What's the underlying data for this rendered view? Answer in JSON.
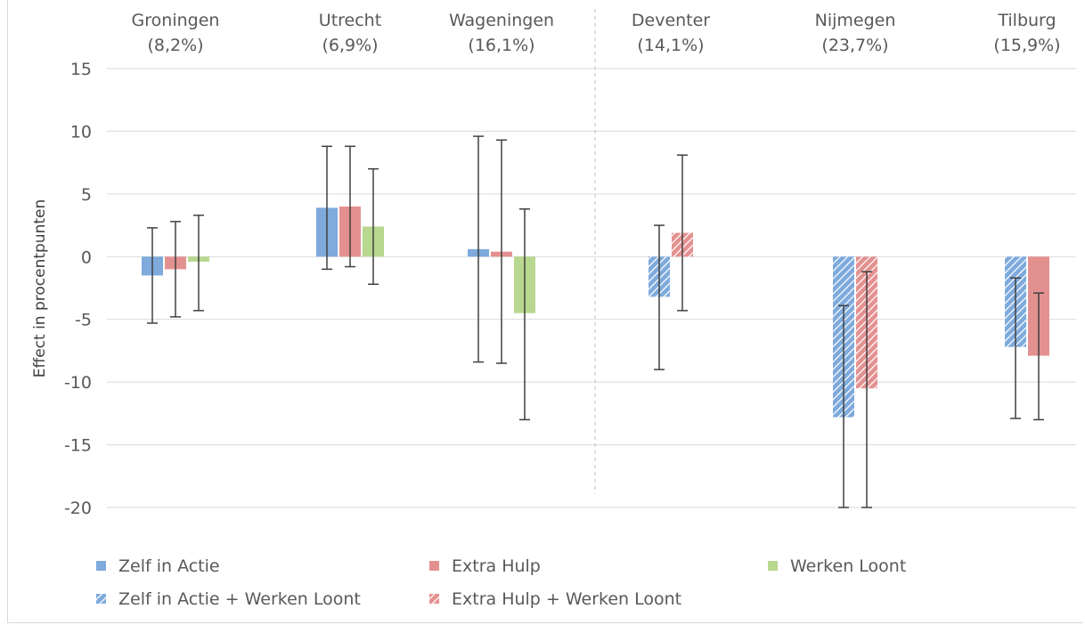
{
  "colors": {
    "blue": "#7eaadc",
    "red": "#e39190",
    "green": "#b8d78f",
    "grid": "#d9d9d9",
    "error": "#404040",
    "divider": "#bfbfbf"
  },
  "chart_data": {
    "type": "bar",
    "ylabel": "Effect in procentpunten",
    "ylim": [
      -20,
      15
    ],
    "yticks": [
      15,
      10,
      5,
      0,
      -5,
      -10,
      -15,
      -20
    ],
    "grid": true,
    "legend_position": "bottom",
    "groups": [
      {
        "name": "Groningen",
        "sub": "(8,2%)",
        "bars": [
          {
            "series": "Zelf in Actie",
            "value": -1.5,
            "err_low": -5.3,
            "err_high": 2.3
          },
          {
            "series": "Extra Hulp",
            "value": -1.0,
            "err_low": -4.8,
            "err_high": 2.8
          },
          {
            "series": "Werken Loont",
            "value": -0.4,
            "err_low": -4.3,
            "err_high": 3.3
          }
        ]
      },
      {
        "name": "Utrecht",
        "sub": "(6,9%)",
        "bars": [
          {
            "series": "Zelf in Actie",
            "value": 3.9,
            "err_low": -1.0,
            "err_high": 8.8
          },
          {
            "series": "Extra Hulp",
            "value": 4.0,
            "err_low": -0.8,
            "err_high": 8.8
          },
          {
            "series": "Werken Loont",
            "value": 2.4,
            "err_low": -2.2,
            "err_high": 7.0
          }
        ]
      },
      {
        "name": "Wageningen",
        "sub": "(16,1%)",
        "bars": [
          {
            "series": "Zelf in Actie",
            "value": 0.6,
            "err_low": -8.4,
            "err_high": 9.6
          },
          {
            "series": "Extra Hulp",
            "value": 0.4,
            "err_low": -8.5,
            "err_high": 9.3
          },
          {
            "series": "Werken Loont",
            "value": -4.5,
            "err_low": -13.0,
            "err_high": 3.8
          }
        ]
      },
      {
        "name": "Deventer",
        "sub": "(14,1%)",
        "bars": [
          {
            "series": "Zelf in Actie + Werken Loont",
            "value": -3.2,
            "err_low": -9.0,
            "err_high": 2.5
          },
          {
            "series": "Extra Hulp + Werken Loont",
            "value": 1.9,
            "err_low": -4.3,
            "err_high": 8.1
          }
        ]
      },
      {
        "name": "Nijmegen",
        "sub": "(23,7%)",
        "bars": [
          {
            "series": "Zelf in Actie + Werken Loont",
            "value": -12.8,
            "err_low": -20.0,
            "err_high": -3.9
          },
          {
            "series": "Extra Hulp + Werken Loont",
            "value": -10.5,
            "err_low": -20.0,
            "err_high": -1.2
          }
        ]
      },
      {
        "name": "Tilburg",
        "sub": "(15,9%)",
        "bars": [
          {
            "series": "Zelf in Actie + Werken Loont",
            "value": -7.2,
            "err_low": -12.9,
            "err_high": -1.7
          },
          {
            "series": "Extra Hulp",
            "value": -7.9,
            "err_low": -13.0,
            "err_high": -2.9
          }
        ]
      }
    ],
    "legend": [
      {
        "label": "Zelf in Actie",
        "color": "blue",
        "hatched": false
      },
      {
        "label": "Extra Hulp",
        "color": "red",
        "hatched": false
      },
      {
        "label": "Werken Loont",
        "color": "green",
        "hatched": false
      },
      {
        "label": "Zelf in Actie + Werken Loont",
        "color": "blue",
        "hatched": true
      },
      {
        "label": "Extra Hulp + Werken Loont",
        "color": "red",
        "hatched": true
      }
    ]
  }
}
